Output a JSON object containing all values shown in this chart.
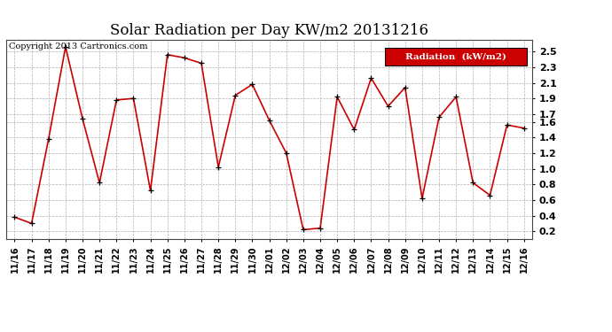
{
  "title": "Solar Radiation per Day KW/m2 20131216",
  "copyright": "Copyright 2013 Cartronics.com",
  "legend_label": "Radiation  (kW/m2)",
  "dates": [
    "11/16",
    "11/17",
    "11/18",
    "11/19",
    "11/20",
    "11/21",
    "11/22",
    "11/23",
    "11/24",
    "11/25",
    "11/26",
    "11/27",
    "11/28",
    "11/29",
    "11/30",
    "12/01",
    "12/02",
    "12/03",
    "12/04",
    "12/05",
    "12/06",
    "12/07",
    "12/08",
    "12/09",
    "12/10",
    "12/11",
    "12/12",
    "12/13",
    "12/14",
    "12/15",
    "12/16"
  ],
  "values": [
    0.38,
    0.3,
    1.38,
    2.56,
    1.64,
    0.82,
    1.88,
    1.9,
    0.72,
    2.46,
    2.42,
    2.35,
    1.02,
    1.94,
    2.08,
    1.62,
    1.2,
    0.22,
    0.24,
    1.92,
    1.5,
    2.16,
    1.8,
    2.04,
    0.62,
    1.66,
    1.92,
    0.82,
    0.66,
    1.56,
    1.52
  ],
  "line_color": "#cc0000",
  "marker_color": "#000000",
  "bg_color": "#ffffff",
  "grid_color": "#b0b0b0",
  "ylim_min": 0.1,
  "ylim_max": 2.65,
  "yticks": [
    0.2,
    0.4,
    0.6,
    0.8,
    1.0,
    1.2,
    1.4,
    1.6,
    1.7,
    1.9,
    2.1,
    2.3,
    2.5
  ],
  "legend_bg": "#cc0000",
  "legend_text_color": "#ffffff",
  "title_fontsize": 12,
  "copyright_fontsize": 7,
  "tick_fontsize": 8,
  "xtick_fontsize": 7
}
